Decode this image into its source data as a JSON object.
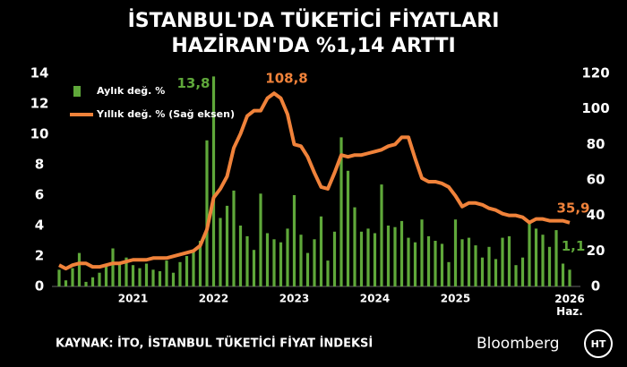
{
  "chart_data": {
    "type": "bar-line",
    "title": [
      "İSTANBUL'DA TÜKETİCİ FİYATLARI",
      "HAZİRAN'DA %1,14 ARTTI"
    ],
    "source": "KAYNAK: İTO, İSTANBUL TÜKETİCİ FİYAT İNDEKSİ",
    "brand": "Bloomberg",
    "logo": "HT",
    "categories": [
      null,
      null,
      null,
      null,
      null,
      null,
      null,
      null,
      null,
      null,
      null,
      "2021",
      null,
      null,
      null,
      null,
      null,
      null,
      null,
      null,
      null,
      null,
      null,
      "2022",
      null,
      null,
      null,
      null,
      null,
      null,
      null,
      null,
      null,
      null,
      null,
      "2023",
      null,
      null,
      null,
      null,
      null,
      null,
      null,
      null,
      null,
      null,
      null,
      "2024",
      null,
      null,
      null,
      null,
      null,
      null,
      null,
      null,
      null,
      null,
      null,
      "2025",
      null,
      null,
      null,
      null,
      null,
      null,
      null,
      null,
      null,
      null,
      null,
      null,
      null,
      null,
      null,
      null,
      "2026 Haz."
    ],
    "series": [
      {
        "name": "Aylık değ. %",
        "kind": "bar",
        "color": "#5fa83a",
        "values": [
          1.1,
          0.4,
          1.2,
          2.2,
          0.3,
          0.6,
          0.9,
          1.4,
          2.5,
          1.6,
          1.9,
          1.4,
          1.2,
          1.5,
          1.1,
          1.0,
          1.7,
          0.9,
          1.6,
          2.0,
          2.4,
          3.0,
          9.6,
          13.8,
          4.5,
          5.3,
          6.3,
          4.0,
          3.3,
          2.4,
          6.1,
          3.5,
          3.1,
          2.9,
          3.8,
          6.0,
          3.4,
          2.2,
          3.1,
          4.6,
          1.7,
          3.6,
          9.8,
          7.6,
          5.2,
          3.6,
          3.8,
          3.5,
          6.7,
          4.0,
          3.9,
          4.3,
          3.2,
          2.9,
          4.4,
          3.3,
          3.0,
          2.8,
          1.6,
          4.4,
          3.1,
          3.2,
          2.7,
          1.9,
          2.6,
          1.8,
          3.2,
          3.3,
          1.4,
          1.9,
          4.2,
          3.8,
          3.4,
          2.6,
          3.7,
          1.5,
          1.1
        ],
        "value_labels": [
          null,
          null,
          null,
          null,
          null,
          null,
          null,
          null,
          null,
          null,
          null,
          null,
          null,
          null,
          null,
          null,
          null,
          null,
          null,
          null,
          null,
          null,
          null,
          "13,8",
          null,
          null,
          null,
          null,
          null,
          null,
          null,
          null,
          null,
          null,
          null,
          null,
          null,
          null,
          null,
          null,
          null,
          null,
          null,
          null,
          null,
          null,
          null,
          null,
          null,
          null,
          null,
          null,
          null,
          null,
          null,
          null,
          null,
          null,
          null,
          null,
          null,
          null,
          null,
          null,
          null,
          null,
          null,
          null,
          null,
          null,
          null,
          null,
          null,
          null,
          null,
          null,
          "1,1"
        ]
      },
      {
        "name": "Yıllık değ. % (Sağ eksen)",
        "kind": "line",
        "axis": "y2",
        "color": "#f0823a",
        "values": [
          12,
          10,
          12,
          13,
          13,
          11,
          11,
          12,
          13,
          13,
          14,
          15,
          15,
          15,
          16,
          16,
          16,
          17,
          18,
          19,
          20,
          23,
          32,
          50,
          55,
          62,
          78,
          86,
          96,
          99,
          99,
          106,
          108.8,
          106,
          97,
          80,
          79,
          73,
          64,
          56,
          55,
          64,
          74,
          73,
          74,
          74,
          75,
          76,
          77,
          79,
          80,
          84,
          84,
          72,
          61,
          59,
          59,
          58,
          56,
          51,
          45,
          47,
          47,
          46,
          44,
          43,
          41,
          40,
          40,
          39,
          36,
          38,
          38,
          37,
          37,
          37,
          35.9
        ],
        "value_labels": [
          null,
          null,
          null,
          null,
          null,
          null,
          null,
          null,
          null,
          null,
          null,
          null,
          null,
          null,
          null,
          null,
          null,
          null,
          null,
          null,
          null,
          null,
          null,
          null,
          null,
          null,
          null,
          null,
          null,
          null,
          null,
          null,
          "108,8",
          null,
          null,
          null,
          null,
          null,
          null,
          null,
          null,
          null,
          null,
          null,
          null,
          null,
          null,
          null,
          null,
          null,
          null,
          null,
          null,
          null,
          null,
          null,
          null,
          null,
          null,
          null,
          null,
          null,
          null,
          null,
          null,
          null,
          null,
          null,
          null,
          null,
          null,
          null,
          null,
          null,
          null,
          null,
          "35,9"
        ]
      }
    ],
    "ylim": [
      0,
      14
    ],
    "yticks": [
      0,
      2,
      4,
      6,
      8,
      10,
      12,
      14
    ],
    "y2lim": [
      0,
      120
    ],
    "y2ticks": [
      0,
      20,
      40,
      60,
      80,
      100,
      120
    ],
    "grid": false
  }
}
